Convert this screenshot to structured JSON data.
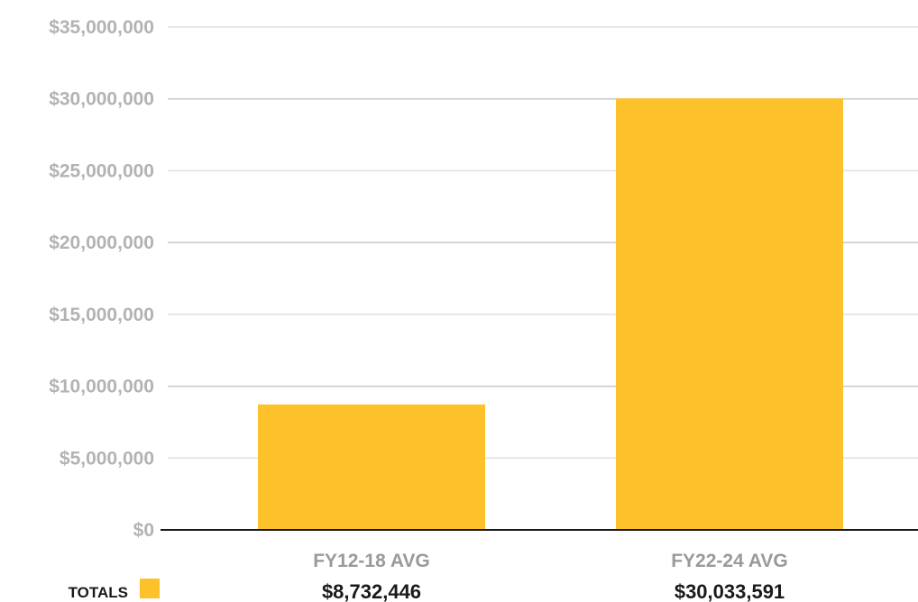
{
  "chart_data": {
    "type": "bar",
    "categories": [
      "FY12-18 AVG",
      "FY22-24 AVG"
    ],
    "series": [
      {
        "name": "TOTALS",
        "values": [
          8732446,
          30033591
        ]
      }
    ],
    "value_labels": [
      "$8,732,446",
      "$30,033,591"
    ],
    "ylim": [
      0,
      35000000
    ],
    "yticks": [
      0,
      5000000,
      10000000,
      15000000,
      20000000,
      25000000,
      30000000,
      35000000
    ],
    "ytick_labels": [
      "$0",
      "$5,000,000",
      "$10,000,000",
      "$15,000,000",
      "$20,000,000",
      "$25,000,000",
      "$30,000,000",
      "$35,000,000"
    ],
    "title": "",
    "xlabel": "",
    "ylabel": "",
    "grid": true,
    "legend": {
      "label": "TOTALS",
      "placement": "bottom-left"
    },
    "colors": {
      "bar": "#FDC12B",
      "grid": "#d4d4d4",
      "axis": "#1a1a1a"
    }
  }
}
